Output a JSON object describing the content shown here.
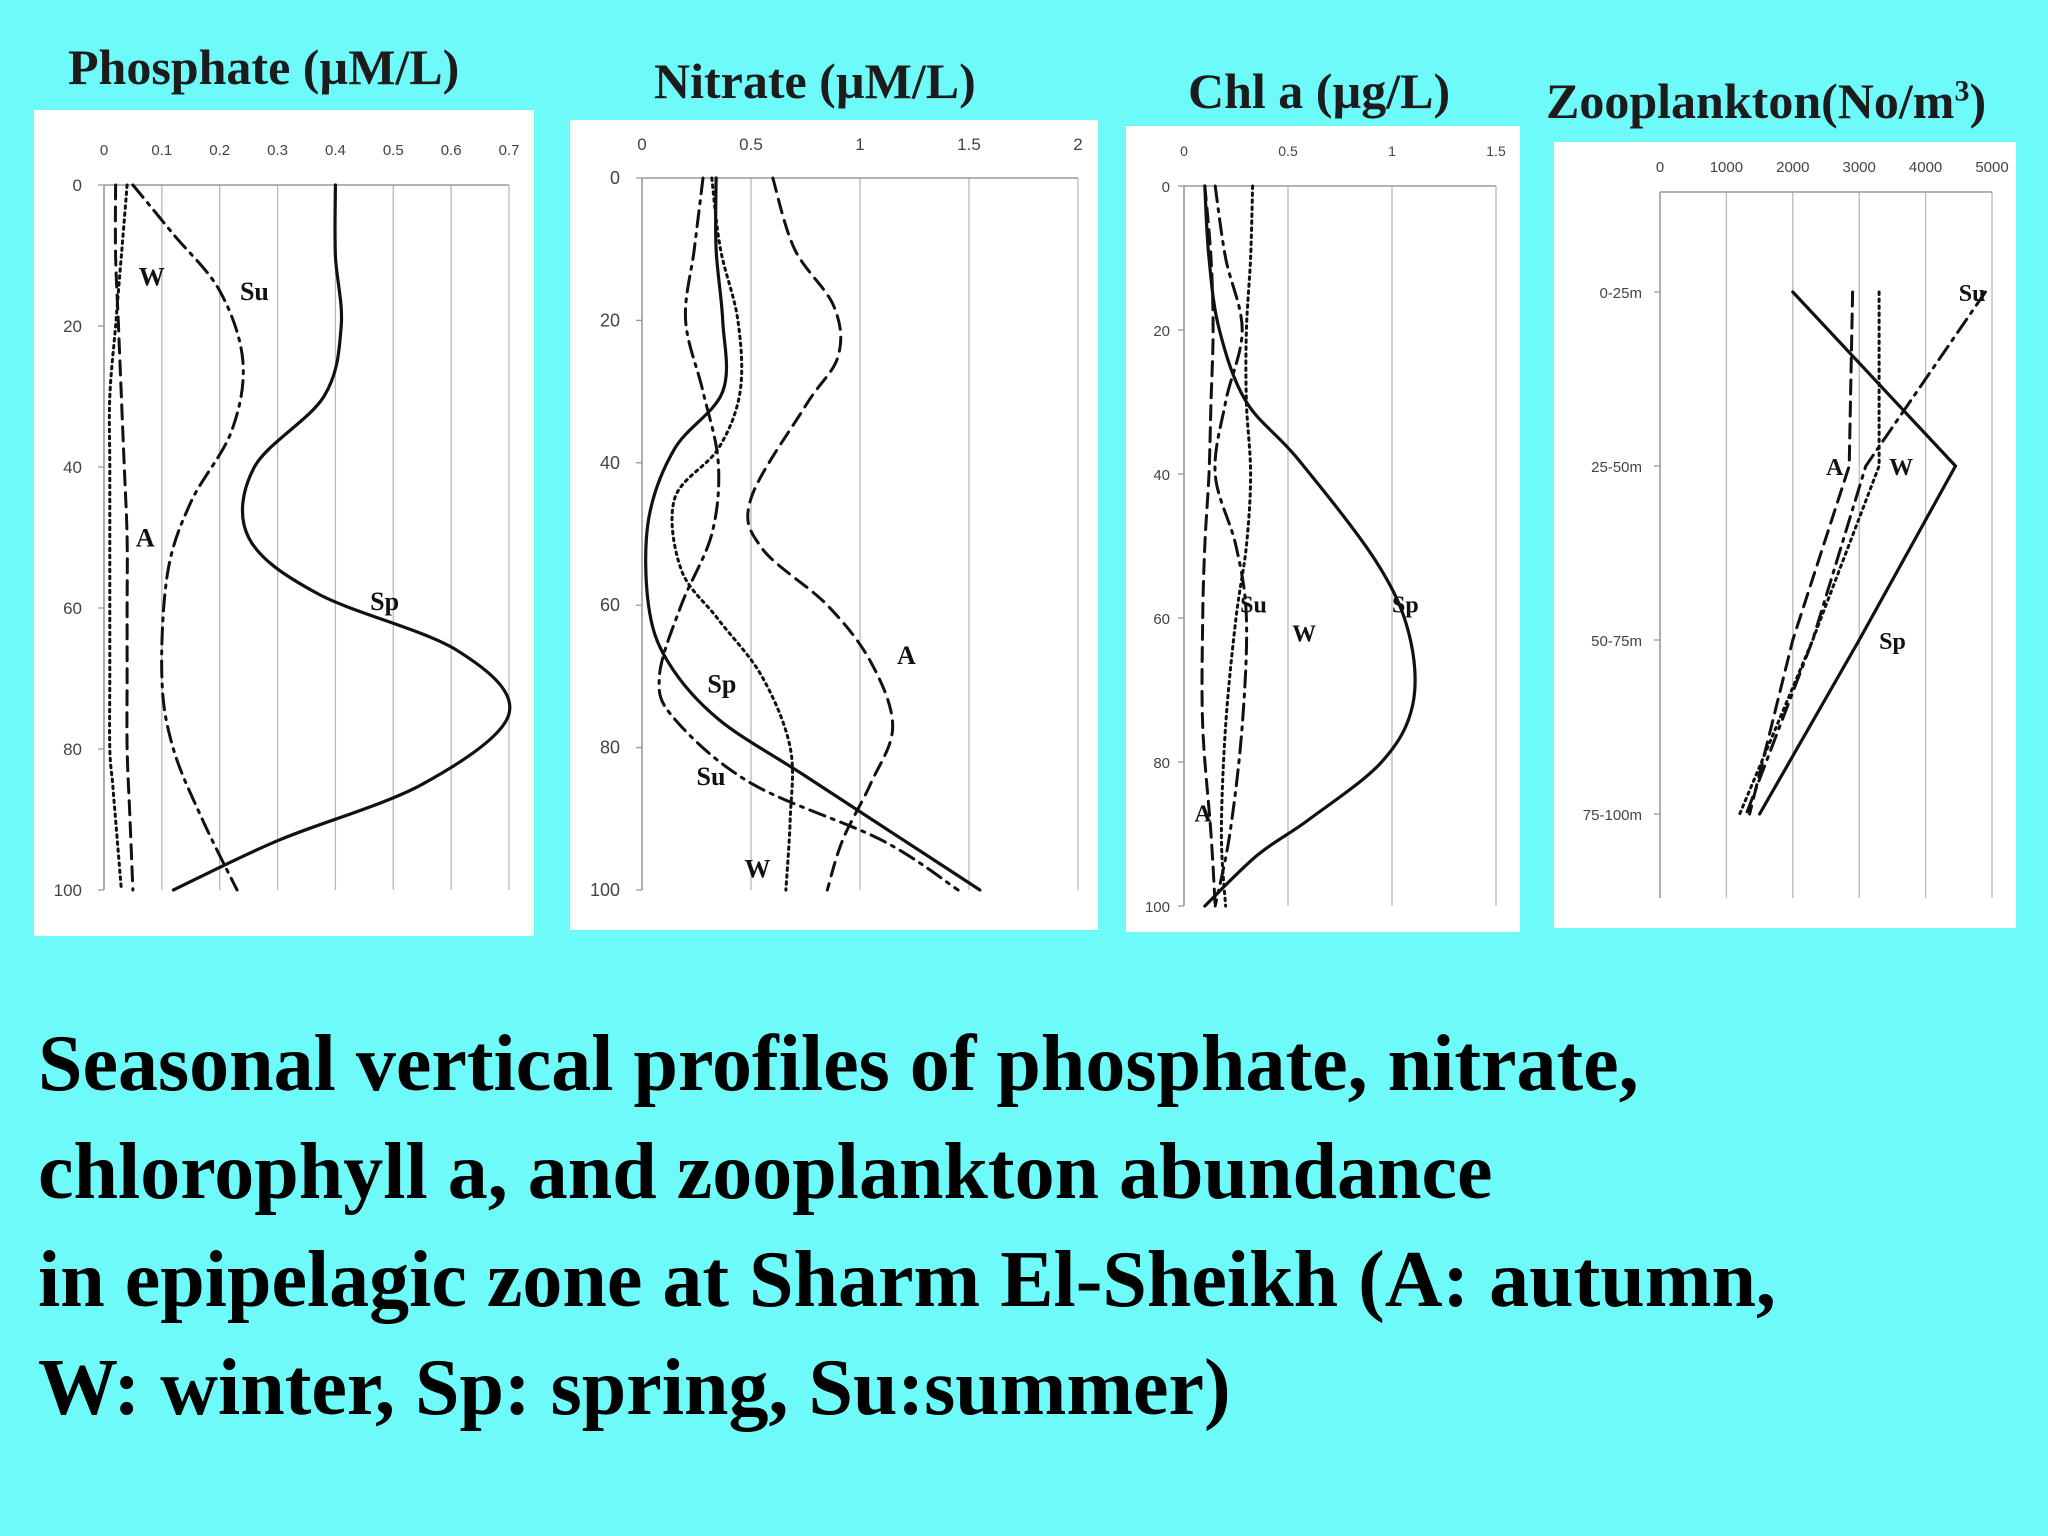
{
  "panels": [
    {
      "id": "phosphate",
      "title_main": "Phosphate (µM/L)",
      "title_sup": "",
      "title_end": ""
    },
    {
      "id": "nitrate",
      "title_main": "Nitrate (µM/L)",
      "title_sup": "",
      "title_end": ""
    },
    {
      "id": "chl",
      "title_main": "Chl  a (µg/L)",
      "title_sup": "",
      "title_end": ""
    },
    {
      "id": "zoo",
      "title_main": "Zooplankton(No/m",
      "title_sup": "3",
      "title_end": ")"
    }
  ],
  "caption": {
    "line1": "Seasonal vertical profiles of phosphate, nitrate,",
    "line2": "chlorophyll a, and zooplankton abundance",
    "line3": "in epipelagic zone at Sharm El-Sheikh (A: autumn,",
    "line4": "W: winter, Sp: spring, Su:summer)"
  },
  "colors": {
    "background": "#6ffafa",
    "panel": "#ffffff",
    "line": "#111111",
    "grid": "#b8b8b8"
  },
  "chart_data": [
    {
      "type": "line",
      "title": "Phosphate (µM/L)",
      "orientation": "vertical-profile",
      "x_ticks": [
        "0",
        "0.1",
        "0.2",
        "0.3",
        "0.4",
        "0.5",
        "0.6",
        "0.7"
      ],
      "y_ticks": [
        "0",
        "20",
        "40",
        "60",
        "80",
        "100"
      ],
      "xlim": [
        0,
        0.7
      ],
      "ylim": [
        0,
        100
      ],
      "y_inverted": true,
      "grid": "vertical",
      "series": [
        {
          "name": "W",
          "style": "dotted",
          "x": [
            0.04,
            0.03,
            0.02,
            0.01,
            0.01,
            0.01,
            0.01,
            0.01,
            0.01,
            0.015,
            0.02,
            0.03
          ],
          "y": [
            0,
            10,
            20,
            30,
            40,
            50,
            60,
            70,
            80,
            85,
            90,
            100
          ]
        },
        {
          "name": "A",
          "style": "dashed",
          "x": [
            0.02,
            0.02,
            0.025,
            0.03,
            0.035,
            0.04,
            0.04,
            0.04,
            0.04,
            0.045,
            0.05
          ],
          "y": [
            0,
            10,
            20,
            30,
            40,
            50,
            60,
            70,
            80,
            90,
            100
          ]
        },
        {
          "name": "Su",
          "style": "dash-dot",
          "x": [
            0.05,
            0.12,
            0.2,
            0.24,
            0.22,
            0.15,
            0.11,
            0.1,
            0.12,
            0.17,
            0.23
          ],
          "y": [
            0,
            7,
            15,
            25,
            35,
            45,
            55,
            70,
            80,
            90,
            100
          ]
        },
        {
          "name": "Sp",
          "style": "solid",
          "x": [
            0.4,
            0.4,
            0.41,
            0.38,
            0.26,
            0.25,
            0.37,
            0.61,
            0.7,
            0.55,
            0.3,
            0.12
          ],
          "y": [
            0,
            10,
            20,
            30,
            40,
            50,
            58,
            66,
            75,
            85,
            93,
            100
          ]
        }
      ],
      "labels": [
        {
          "text": "W",
          "x": 0.06,
          "y": 13
        },
        {
          "text": "Su",
          "x": 0.235,
          "y": 15
        },
        {
          "text": "A",
          "x": 0.055,
          "y": 50
        },
        {
          "text": "Sp",
          "x": 0.46,
          "y": 59
        }
      ]
    },
    {
      "type": "line",
      "title": "Nitrate (µM/L)",
      "orientation": "vertical-profile",
      "x_ticks": [
        "0",
        "0.5",
        "1",
        "1.5",
        "2"
      ],
      "y_ticks": [
        "0",
        "20",
        "40",
        "60",
        "80",
        "100"
      ],
      "xlim": [
        0,
        2
      ],
      "ylim": [
        0,
        100
      ],
      "y_inverted": true,
      "grid": "vertical",
      "series": [
        {
          "name": "A",
          "style": "dashed",
          "x": [
            0.6,
            0.7,
            0.88,
            0.9,
            0.75,
            0.5,
            0.55,
            0.85,
            1.05,
            1.15,
            1.05,
            0.92,
            0.85
          ],
          "y": [
            0,
            10,
            18,
            25,
            32,
            45,
            52,
            60,
            68,
            77,
            85,
            93,
            100
          ]
        },
        {
          "name": "W",
          "style": "dotted",
          "x": [
            0.32,
            0.36,
            0.44,
            0.45,
            0.35,
            0.15,
            0.18,
            0.35,
            0.55,
            0.68,
            0.68,
            0.66
          ],
          "y": [
            0,
            10,
            20,
            30,
            38,
            45,
            55,
            62,
            70,
            80,
            90,
            100
          ]
        },
        {
          "name": "Su",
          "style": "dash-dot",
          "x": [
            0.28,
            0.24,
            0.2,
            0.28,
            0.35,
            0.32,
            0.18,
            0.08,
            0.15,
            0.5,
            1.1,
            1.45
          ],
          "y": [
            0,
            10,
            20,
            30,
            40,
            50,
            60,
            70,
            76,
            85,
            93,
            100
          ]
        },
        {
          "name": "Sp",
          "style": "solid",
          "x": [
            0.34,
            0.34,
            0.37,
            0.37,
            0.15,
            0.03,
            0.03,
            0.12,
            0.35,
            0.75,
            1.2,
            1.55
          ],
          "y": [
            0,
            10,
            20,
            30,
            38,
            48,
            60,
            68,
            76,
            84,
            93,
            100
          ]
        }
      ],
      "labels": [
        {
          "text": "A",
          "x": 1.17,
          "y": 67
        },
        {
          "text": "Sp",
          "x": 0.3,
          "y": 71
        },
        {
          "text": "Su",
          "x": 0.25,
          "y": 84
        },
        {
          "text": "W",
          "x": 0.47,
          "y": 97
        }
      ]
    },
    {
      "type": "line",
      "title": "Chl  a (µg/L)",
      "orientation": "vertical-profile",
      "x_ticks": [
        "0",
        "0.5",
        "1",
        "1.5"
      ],
      "y_ticks": [
        "0",
        "20",
        "40",
        "60",
        "80",
        "100"
      ],
      "xlim": [
        0,
        1.5
      ],
      "ylim": [
        0,
        100
      ],
      "y_inverted": true,
      "grid": "vertical",
      "series": [
        {
          "name": "W",
          "style": "dotted",
          "x": [
            0.33,
            0.32,
            0.3,
            0.3,
            0.32,
            0.3,
            0.25,
            0.2,
            0.18,
            0.2
          ],
          "y": [
            0,
            10,
            20,
            30,
            40,
            50,
            60,
            75,
            90,
            100
          ]
        },
        {
          "name": "Su",
          "style": "dash-dot",
          "x": [
            0.15,
            0.2,
            0.28,
            0.2,
            0.15,
            0.25,
            0.3,
            0.28,
            0.22,
            0.15
          ],
          "y": [
            0,
            10,
            20,
            30,
            40,
            50,
            60,
            75,
            90,
            100
          ]
        },
        {
          "name": "A",
          "style": "dashed",
          "x": [
            0.1,
            0.13,
            0.14,
            0.13,
            0.12,
            0.1,
            0.09,
            0.09,
            0.13,
            0.15
          ],
          "y": [
            0,
            10,
            20,
            30,
            40,
            50,
            60,
            75,
            90,
            100
          ]
        },
        {
          "name": "Sp",
          "style": "solid",
          "x": [
            0.1,
            0.12,
            0.17,
            0.3,
            0.55,
            0.92,
            1.08,
            1.1,
            0.95,
            0.6,
            0.35,
            0.1
          ],
          "y": [
            0,
            10,
            20,
            30,
            38,
            52,
            62,
            72,
            80,
            88,
            93,
            100
          ]
        }
      ],
      "labels": [
        {
          "text": "Su",
          "x": 0.27,
          "y": 58
        },
        {
          "text": "W",
          "x": 0.52,
          "y": 62
        },
        {
          "text": "Sp",
          "x": 1.0,
          "y": 58
        },
        {
          "text": "A",
          "x": 0.05,
          "y": 87
        }
      ]
    },
    {
      "type": "line",
      "title": "Zooplankton(No/m3)",
      "orientation": "vertical-profile",
      "x_ticks": [
        "0",
        "1000",
        "2000",
        "3000",
        "4000",
        "5000"
      ],
      "y_ticks": [
        "0-25m",
        "25-50m",
        "50-75m",
        "75-100m"
      ],
      "xlim": [
        0,
        5000
      ],
      "y_categories": [
        "0-25m",
        "25-50m",
        "50-75m",
        "75-100m"
      ],
      "grid": "vertical",
      "series": [
        {
          "name": "Su",
          "style": "dash-dot",
          "x": [
            4900,
            3100,
            2300,
            1300
          ],
          "y": [
            "0-25m",
            "25-50m",
            "50-75m",
            "75-100m"
          ]
        },
        {
          "name": "A",
          "style": "dashed",
          "x": [
            2900,
            2850,
            2000,
            1350
          ],
          "y": [
            "0-25m",
            "25-50m",
            "50-75m",
            "75-100m"
          ]
        },
        {
          "name": "W",
          "style": "dotted",
          "x": [
            3300,
            3300,
            2300,
            1200
          ],
          "y": [
            "0-25m",
            "25-50m",
            "50-75m",
            "75-100m"
          ]
        },
        {
          "name": "Sp",
          "style": "solid",
          "x": [
            2000,
            4450,
            3000,
            1500
          ],
          "y": [
            "0-25m",
            "25-50m",
            "50-75m",
            "75-100m"
          ]
        }
      ],
      "labels": [
        {
          "text": "Su",
          "x": 4500,
          "y": "0-25m"
        },
        {
          "text": "A",
          "x": 2500,
          "y": "25-50m"
        },
        {
          "text": "W",
          "x": 3450,
          "y": "25-50m"
        },
        {
          "text": "Sp",
          "x": 3300,
          "y": "50-75m"
        }
      ]
    }
  ]
}
